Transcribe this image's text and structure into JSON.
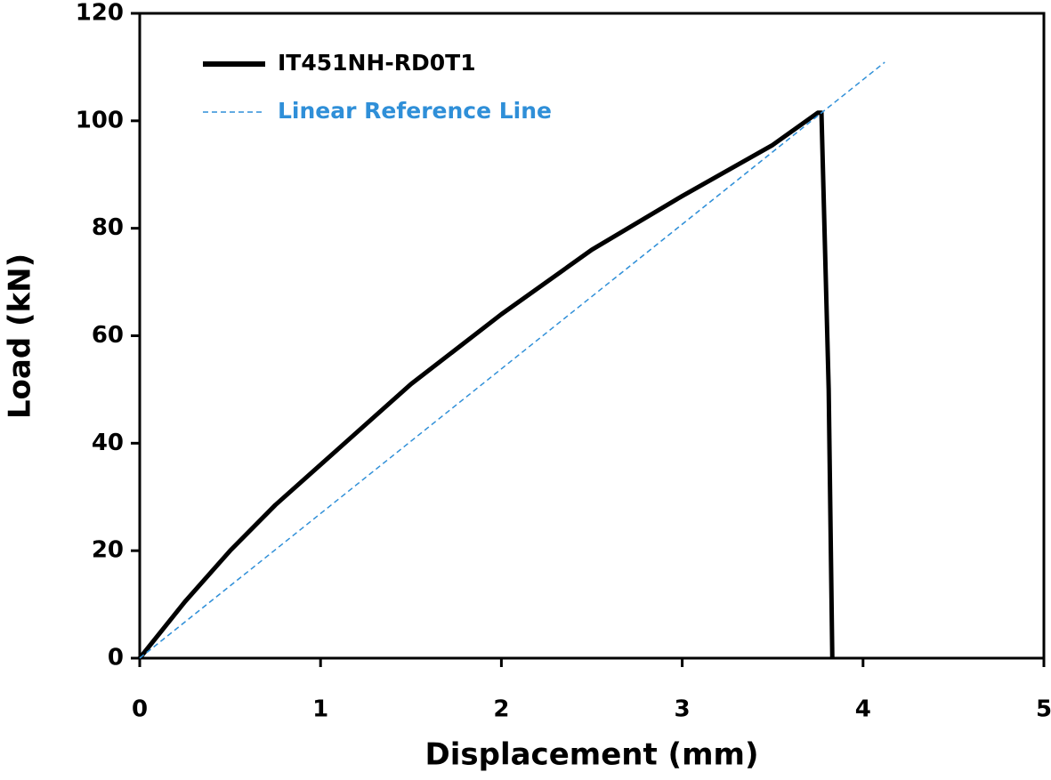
{
  "chart_data": {
    "type": "line",
    "x_label": "Displacement (mm)",
    "y_label": "Load (kN)",
    "xlim": [
      0,
      5
    ],
    "ylim": [
      0,
      120
    ],
    "xticks": [
      0,
      1,
      2,
      3,
      4,
      5
    ],
    "yticks": [
      0,
      20,
      40,
      60,
      80,
      100,
      120
    ],
    "legend": "upper left",
    "grid": false,
    "series": [
      {
        "name": "IT451NH-RD0T1",
        "color": "#000000",
        "style": "solid",
        "x": [
          0,
          0.25,
          0.5,
          0.75,
          1,
          1.5,
          2,
          2.5,
          3,
          3.5,
          3.75,
          3.77,
          3.81,
          3.83
        ],
        "values": [
          0,
          10.5,
          20,
          28.5,
          36,
          51,
          64,
          76,
          86,
          95.5,
          101.5,
          101.5,
          50,
          0
        ]
      },
      {
        "name": "Linear Reference Line",
        "color": "#2f8fd8",
        "style": "dashed",
        "x": [
          0,
          4.12
        ],
        "values": [
          0,
          110.9
        ]
      }
    ]
  }
}
